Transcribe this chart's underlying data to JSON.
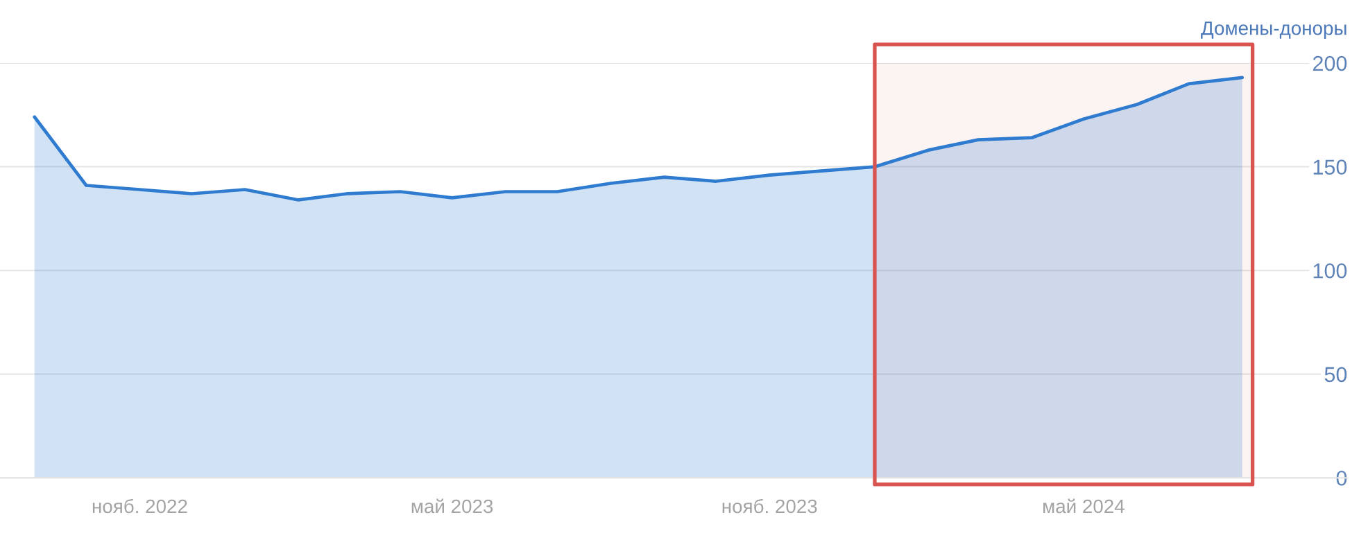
{
  "chart_data": {
    "type": "area",
    "ylabel": "Домены-доноры",
    "x": [
      "2022-09",
      "2022-10",
      "2022-11",
      "2022-12",
      "2023-01",
      "2023-02",
      "2023-03",
      "2023-04",
      "2023-05",
      "2023-06",
      "2023-07",
      "2023-08",
      "2023-09",
      "2023-10",
      "2023-11",
      "2023-12",
      "2024-01",
      "2024-02",
      "2024-03",
      "2024-04",
      "2024-05",
      "2024-06",
      "2024-07",
      "2024-08"
    ],
    "series": [
      {
        "color": "#2e7bcf",
        "values": [
          174,
          141,
          139,
          137,
          139,
          134,
          137,
          138,
          135,
          138,
          138,
          142,
          145,
          143,
          146,
          148,
          150,
          158,
          163,
          164,
          173,
          180,
          190,
          193
        ]
      }
    ],
    "xlim": [
      "2022-08-12",
      "2024-10-01"
    ],
    "ylim": [
      0,
      200
    ],
    "yticks": [
      0,
      50,
      100,
      150,
      200
    ],
    "xticks": [
      {
        "value": "2022-11",
        "label": "нояб. 2022"
      },
      {
        "value": "2023-05",
        "label": "май 2023"
      },
      {
        "value": "2023-11",
        "label": "нояб. 2023"
      },
      {
        "value": "2024-05",
        "label": "май 2024"
      }
    ],
    "grid": "y",
    "bands": [
      {
        "axis": "x",
        "from": "2024-01",
        "to": "2024-08-07",
        "color": "#d9534f"
      }
    ]
  }
}
